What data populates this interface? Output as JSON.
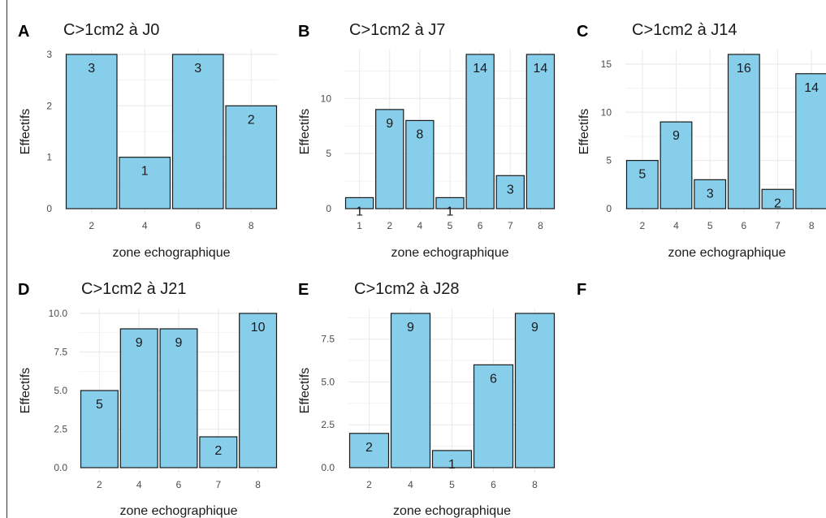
{
  "panel_labels": [
    "A",
    "B",
    "C",
    "D",
    "E",
    "F"
  ],
  "colors": {
    "bar_fill": "#87ceeb",
    "bar_stroke": "#1a1a1a",
    "grid": "#ebebeb",
    "text": "#1a1a1a",
    "tick_text": "#4d4d4d"
  },
  "chart_data": [
    {
      "type": "bar",
      "panel": "A",
      "title": "C>1cm2 à J0",
      "xlabel": "zone echographique",
      "ylabel": "Effectifs",
      "categories": [
        "2",
        "4",
        "6",
        "8"
      ],
      "values": [
        3,
        1,
        3,
        2
      ],
      "ylim": [
        0,
        3
      ],
      "yticks": [
        "0",
        "1",
        "2",
        "3"
      ],
      "grid": true
    },
    {
      "type": "bar",
      "panel": "B",
      "title": "C>1cm2 à J7",
      "xlabel": "zone echographique",
      "ylabel": "Effectifs",
      "categories": [
        "1",
        "2",
        "4",
        "5",
        "6",
        "7",
        "8"
      ],
      "values": [
        1,
        9,
        8,
        1,
        14,
        3,
        14
      ],
      "ylim": [
        0,
        14
      ],
      "yticks": [
        "0",
        "5",
        "10"
      ],
      "grid": true
    },
    {
      "type": "bar",
      "panel": "C",
      "title": "C>1cm2 à J14",
      "xlabel": "zone echographique",
      "ylabel": "Effectifs",
      "categories": [
        "2",
        "4",
        "5",
        "6",
        "7",
        "8"
      ],
      "values": [
        5,
        9,
        3,
        16,
        2,
        14
      ],
      "ylim": [
        0,
        16
      ],
      "yticks": [
        "0",
        "5",
        "10",
        "15"
      ],
      "grid": true
    },
    {
      "type": "bar",
      "panel": "D",
      "title": "C>1cm2 à J21",
      "xlabel": "zone echographique",
      "ylabel": "Effectifs",
      "categories": [
        "2",
        "4",
        "6",
        "7",
        "8"
      ],
      "values": [
        5,
        9,
        9,
        2,
        10
      ],
      "ylim": [
        0,
        10
      ],
      "yticks": [
        "0.0",
        "2.5",
        "5.0",
        "7.5",
        "10.0"
      ],
      "grid": true
    },
    {
      "type": "bar",
      "panel": "E",
      "title": "C>1cm2 à J28",
      "xlabel": "zone echographique",
      "ylabel": "Effectifs",
      "categories": [
        "2",
        "4",
        "5",
        "6",
        "8"
      ],
      "values": [
        2,
        9,
        1,
        6,
        9
      ],
      "ylim": [
        0,
        9
      ],
      "yticks": [
        "0.0",
        "2.5",
        "5.0",
        "7.5"
      ],
      "grid": true
    }
  ]
}
